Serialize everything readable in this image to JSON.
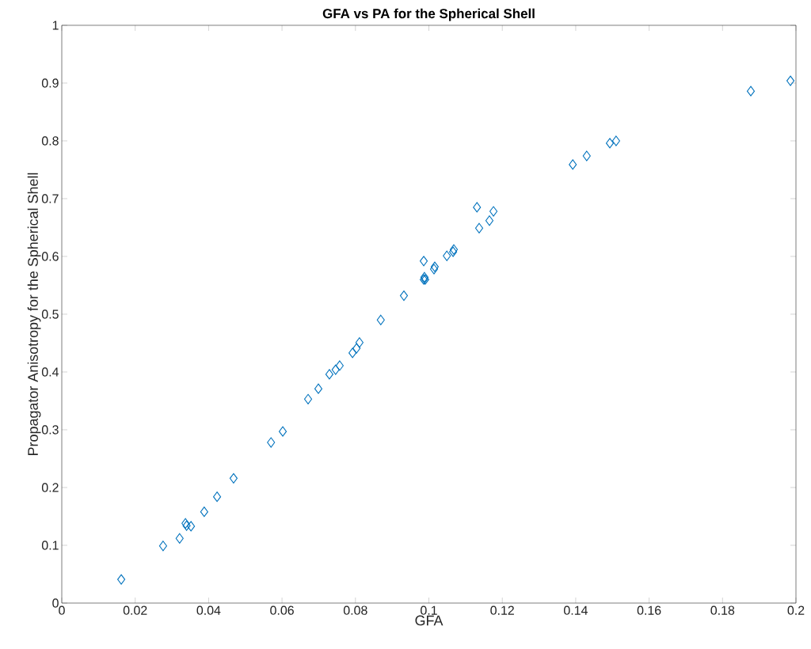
{
  "chart_data": {
    "type": "scatter",
    "title": "GFA vs PA for the Spherical Shell",
    "xlabel": "GFA",
    "ylabel": "Propagator Anisotropy for the Spherical Shell",
    "xlim": [
      0,
      0.2
    ],
    "ylim": [
      0,
      1
    ],
    "xticks": [
      0,
      0.02,
      0.04,
      0.06,
      0.08,
      0.1,
      0.12,
      0.14,
      0.16,
      0.18,
      0.2
    ],
    "yticks": [
      0,
      0.1,
      0.2,
      0.3,
      0.4,
      0.5,
      0.6,
      0.7,
      0.8,
      0.9,
      1
    ],
    "marker": "diamond",
    "grid": false,
    "series": [
      {
        "color": "#0072bd",
        "x": [
          0.0162,
          0.0276,
          0.0321,
          0.0337,
          0.034,
          0.0352,
          0.0388,
          0.0423,
          0.0468,
          0.057,
          0.0602,
          0.0671,
          0.0699,
          0.0729,
          0.0746,
          0.0757,
          0.0792,
          0.0803,
          0.0811,
          0.0869,
          0.0932,
          0.0986,
          0.0988,
          0.099,
          0.0986,
          0.1014,
          0.1016,
          0.1049,
          0.1066,
          0.1068,
          0.1131,
          0.1137,
          0.1165,
          0.1176,
          0.1392,
          0.143,
          0.1493,
          0.151,
          0.1877,
          0.1985
        ],
        "values": [
          0.041,
          0.099,
          0.112,
          0.138,
          0.134,
          0.133,
          0.158,
          0.184,
          0.216,
          0.278,
          0.297,
          0.353,
          0.371,
          0.396,
          0.404,
          0.411,
          0.433,
          0.441,
          0.451,
          0.49,
          0.532,
          0.56,
          0.564,
          0.56,
          0.592,
          0.578,
          0.582,
          0.601,
          0.608,
          0.612,
          0.685,
          0.649,
          0.662,
          0.678,
          0.759,
          0.774,
          0.796,
          0.8,
          0.886,
          0.904
        ]
      }
    ]
  }
}
